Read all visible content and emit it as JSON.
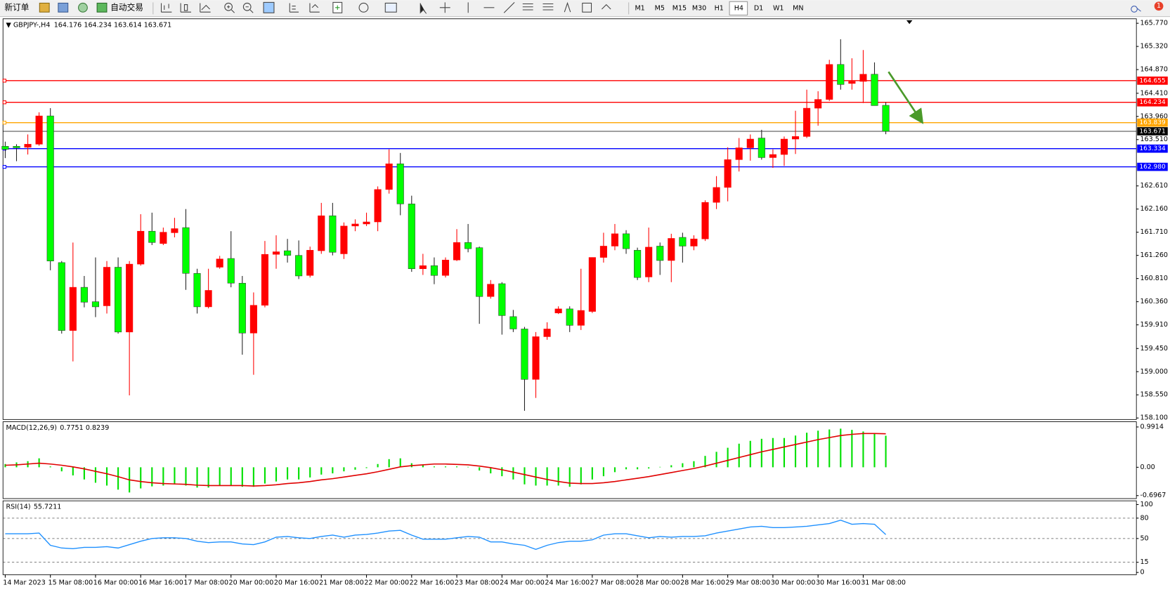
{
  "toolbar": {
    "new_order": "新订单",
    "auto_trading": "自动交易",
    "timeframes": [
      "M1",
      "M5",
      "M15",
      "M30",
      "H1",
      "H4",
      "D1",
      "W1",
      "MN"
    ],
    "badge": "1"
  },
  "chart_data": [
    {
      "type": "candlestick",
      "title": "GBPJPY-,H4",
      "categories": [
        "14 Mar 2023",
        null,
        null,
        null,
        "15 Mar 08:00",
        null,
        null,
        null,
        "16 Mar 00:00",
        null,
        null,
        null,
        "16 Mar 16:00",
        null,
        null,
        null,
        "17 Mar 08:00",
        null,
        null,
        null,
        "20 Mar 00:00",
        null,
        null,
        null,
        "20 Mar 16:00",
        null,
        null,
        null,
        "21 Mar 08:00",
        null,
        null,
        null,
        "22 Mar 00:00",
        null,
        null,
        null,
        "22 Mar 16:00",
        null,
        null,
        null,
        "23 Mar 08:00",
        null,
        null,
        null,
        "24 Mar 00:00",
        null,
        null,
        null,
        "24 Mar 16:00",
        null,
        null,
        null,
        "27 Mar 08:00",
        null,
        null,
        null,
        "28 Mar 00:00",
        null,
        null,
        null,
        "28 Mar 16:00",
        null,
        null,
        null,
        "29 Mar 08:00",
        null,
        null,
        null,
        "30 Mar 00:00",
        null,
        null,
        null,
        "30 Mar 16:00",
        null,
        null,
        null,
        "31 Mar 08:00",
        null,
        null
      ],
      "open": [
        163.38,
        163.38,
        163.36,
        163.42,
        163.97,
        161.12,
        159.8,
        160.64,
        160.36,
        160.28,
        161.03,
        159.77,
        161.09,
        161.73,
        161.49,
        161.7,
        161.8,
        160.91,
        160.26,
        161.03,
        161.2,
        160.72,
        159.75,
        160.29,
        161.28,
        161.35,
        161.26,
        160.87,
        161.35,
        162.03,
        161.29,
        161.83,
        161.87,
        161.91,
        162.54,
        163.04,
        162.26,
        161.0,
        161.06,
        160.87,
        161.17,
        161.51,
        161.41,
        160.46,
        160.71,
        160.07,
        159.83,
        158.85,
        159.68,
        160.14,
        160.22,
        159.9,
        160.17,
        161.22,
        161.44,
        161.68,
        161.36,
        160.84,
        161.44,
        161.16,
        161.61,
        161.44,
        161.58,
        162.29,
        162.58,
        163.12,
        163.35,
        163.54,
        163.16,
        163.22,
        163.52,
        163.57,
        164.12,
        164.29,
        164.97,
        164.6,
        164.64,
        164.78,
        164.176
      ],
      "high": [
        163.47,
        163.42,
        163.61,
        164.04,
        164.12,
        161.15,
        161.51,
        160.86,
        161.22,
        161.15,
        161.22,
        161.15,
        162.06,
        162.09,
        161.8,
        161.99,
        162.16,
        161.0,
        161.0,
        161.25,
        161.73,
        160.86,
        160.54,
        161.54,
        161.65,
        161.58,
        161.55,
        161.43,
        162.28,
        162.28,
        161.9,
        161.96,
        162.09,
        162.6,
        163.32,
        163.25,
        162.42,
        161.29,
        161.22,
        161.22,
        161.77,
        161.87,
        161.43,
        160.78,
        160.74,
        160.2,
        159.87,
        159.77,
        159.96,
        160.27,
        160.27,
        161.0,
        161.22,
        161.7,
        161.87,
        161.75,
        161.41,
        161.8,
        161.51,
        161.68,
        161.7,
        161.65,
        162.33,
        162.8,
        163.36,
        163.54,
        163.61,
        163.7,
        163.32,
        163.57,
        164.07,
        164.48,
        164.45,
        165.06,
        165.46,
        165.09,
        165.25,
        165.01,
        164.234
      ],
      "low": [
        163.15,
        163.09,
        163.22,
        163.39,
        160.97,
        159.74,
        159.2,
        160.25,
        160.06,
        160.13,
        159.74,
        158.54,
        161.06,
        161.46,
        161.46,
        161.61,
        160.59,
        160.13,
        160.23,
        161.0,
        160.64,
        159.33,
        158.94,
        160.25,
        161.0,
        161.12,
        160.8,
        160.83,
        161.29,
        161.26,
        161.19,
        161.73,
        161.83,
        161.73,
        162.46,
        162.04,
        160.94,
        160.88,
        160.7,
        160.83,
        161.15,
        161.32,
        159.93,
        160.42,
        159.72,
        159.77,
        158.24,
        158.49,
        159.62,
        160.12,
        159.77,
        159.81,
        160.14,
        161.12,
        161.36,
        161.29,
        160.78,
        160.74,
        160.88,
        160.74,
        161.12,
        161.36,
        161.54,
        162.16,
        162.31,
        162.89,
        163.1,
        163.12,
        162.96,
        163.0,
        163.23,
        163.54,
        163.78,
        164.26,
        164.48,
        164.48,
        164.22,
        164.17,
        163.614
      ],
      "close": [
        163.32,
        163.35,
        163.42,
        163.97,
        161.15,
        159.8,
        160.64,
        160.35,
        160.26,
        161.03,
        159.77,
        161.09,
        161.73,
        161.51,
        161.71,
        161.78,
        160.91,
        160.26,
        160.58,
        161.19,
        160.72,
        159.75,
        160.29,
        161.28,
        161.33,
        161.26,
        160.86,
        161.36,
        162.03,
        161.32,
        161.83,
        161.87,
        161.91,
        162.54,
        163.04,
        162.26,
        161.0,
        161.06,
        160.87,
        161.17,
        161.51,
        161.39,
        160.46,
        160.7,
        160.09,
        159.83,
        158.85,
        159.68,
        159.83,
        160.22,
        159.9,
        160.19,
        161.22,
        161.44,
        161.68,
        161.39,
        160.83,
        161.42,
        161.16,
        161.59,
        161.44,
        161.58,
        162.29,
        162.58,
        163.12,
        163.35,
        163.52,
        163.16,
        163.22,
        163.52,
        163.57,
        164.12,
        164.29,
        164.97,
        164.58,
        164.64,
        164.78,
        164.17,
        163.671
      ],
      "up_color": "#ff0000",
      "down_color": "#00ff00",
      "ylim": [
        158.1,
        165.77
      ],
      "yticks": [
        {
          "value": 165.77,
          "label": "165.770"
        },
        {
          "value": 165.32,
          "label": "165.320"
        },
        {
          "value": 164.87,
          "label": "164.870"
        },
        {
          "value": 164.41,
          "label": "164.410"
        },
        {
          "value": 163.96,
          "label": "163.960"
        },
        {
          "value": 163.51,
          "label": "163.510"
        },
        {
          "value": 162.61,
          "label": "162.610"
        },
        {
          "value": 162.16,
          "label": "162.160"
        },
        {
          "value": 161.71,
          "label": "161.710"
        },
        {
          "value": 161.26,
          "label": "161.260"
        },
        {
          "value": 160.81,
          "label": "160.810"
        },
        {
          "value": 160.36,
          "label": "160.360"
        },
        {
          "value": 159.91,
          "label": "159.910"
        },
        {
          "value": 159.45,
          "label": "159.450"
        },
        {
          "value": 159.0,
          "label": "159.000"
        },
        {
          "value": 158.55,
          "label": "158.550"
        },
        {
          "value": 158.1,
          "label": "158.100"
        }
      ],
      "lines": [
        {
          "value": 164.655,
          "color": "#ff0000"
        },
        {
          "value": 164.234,
          "color": "#ff0000"
        },
        {
          "value": 163.839,
          "color": "#ffa500"
        },
        {
          "value": 163.671,
          "color": "#000000"
        },
        {
          "value": 163.334,
          "color": "#0000ff"
        },
        {
          "value": {
            "value": 162.98,
            "label": "162.980"
          },
          "color": "#0000ff"
        }
      ]
    },
    {
      "type": "macd",
      "title": "MACD(12,26,9)",
      "values": [
        0.08,
        0.12,
        0.15,
        0.22,
        0.02,
        -0.1,
        -0.2,
        -0.3,
        -0.38,
        -0.45,
        -0.55,
        -0.62,
        -0.52,
        -0.47,
        -0.45,
        -0.42,
        -0.45,
        -0.5,
        -0.5,
        -0.45,
        -0.45,
        -0.48,
        -0.48,
        -0.4,
        -0.35,
        -0.3,
        -0.3,
        -0.25,
        -0.18,
        -0.15,
        -0.1,
        -0.06,
        -0.02,
        0.08,
        0.2,
        0.22,
        0.1,
        0.05,
        0.02,
        0.02,
        0.02,
        0.01,
        -0.08,
        -0.15,
        -0.22,
        -0.3,
        -0.42,
        -0.45,
        -0.45,
        -0.45,
        -0.48,
        -0.42,
        -0.3,
        -0.22,
        -0.12,
        -0.05,
        -0.05,
        -0.03,
        0.01,
        0.05,
        0.1,
        0.15,
        0.28,
        0.38,
        0.48,
        0.58,
        0.65,
        0.7,
        0.72,
        0.72,
        0.78,
        0.85,
        0.9,
        0.93,
        0.95,
        0.92,
        0.88,
        0.84,
        0.7751
      ],
      "color": "#00e000",
      "signal_values": [
        0.05,
        0.06,
        0.08,
        0.1,
        0.08,
        0.05,
        0.01,
        -0.04,
        -0.1,
        -0.16,
        -0.23,
        -0.31,
        -0.35,
        -0.38,
        -0.4,
        -0.41,
        -0.42,
        -0.44,
        -0.45,
        -0.45,
        -0.45,
        -0.45,
        -0.46,
        -0.45,
        -0.43,
        -0.4,
        -0.38,
        -0.35,
        -0.31,
        -0.28,
        -0.24,
        -0.2,
        -0.16,
        -0.11,
        -0.05,
        0.01,
        0.04,
        0.06,
        0.08,
        0.08,
        0.07,
        0.06,
        0.03,
        -0.01,
        -0.06,
        -0.12,
        -0.18,
        -0.24,
        -0.3,
        -0.35,
        -0.39,
        -0.4,
        -0.4,
        -0.38,
        -0.35,
        -0.31,
        -0.27,
        -0.23,
        -0.18,
        -0.13,
        -0.08,
        -0.03,
        0.03,
        0.1,
        0.17,
        0.24,
        0.31,
        0.38,
        0.44,
        0.5,
        0.56,
        0.62,
        0.68,
        0.73,
        0.78,
        0.81,
        0.83,
        0.83,
        0.8239
      ],
      "signal_color": "#e00000",
      "ylim": [
        -0.77,
        1.12
      ],
      "yticks": [
        0.9914,
        {
          "value": 0,
          "label": "0.00"
        },
        -0.6967
      ]
    },
    {
      "type": "line",
      "title": "RSI(14)",
      "values": [
        57,
        57,
        57,
        58,
        40,
        36,
        35,
        37,
        37,
        38,
        36,
        41,
        46,
        50,
        51,
        51,
        50,
        46,
        44,
        45,
        45,
        42,
        41,
        45,
        52,
        53,
        51,
        50,
        53,
        55,
        52,
        55,
        56,
        58,
        61,
        62,
        55,
        49,
        49,
        49,
        51,
        53,
        52,
        45,
        45,
        42,
        40,
        34,
        40,
        44,
        46,
        46,
        48,
        55,
        57,
        57,
        54,
        51,
        53,
        52,
        53,
        53,
        54,
        58,
        61,
        64,
        67,
        68,
        66,
        66,
        67,
        68,
        70,
        72,
        77,
        71,
        72,
        71,
        55.7211
      ],
      "color": "#1e90ff",
      "ylim": [
        0,
        100
      ],
      "yticks": [
        100,
        80,
        50,
        15,
        0
      ]
    }
  ]
}
